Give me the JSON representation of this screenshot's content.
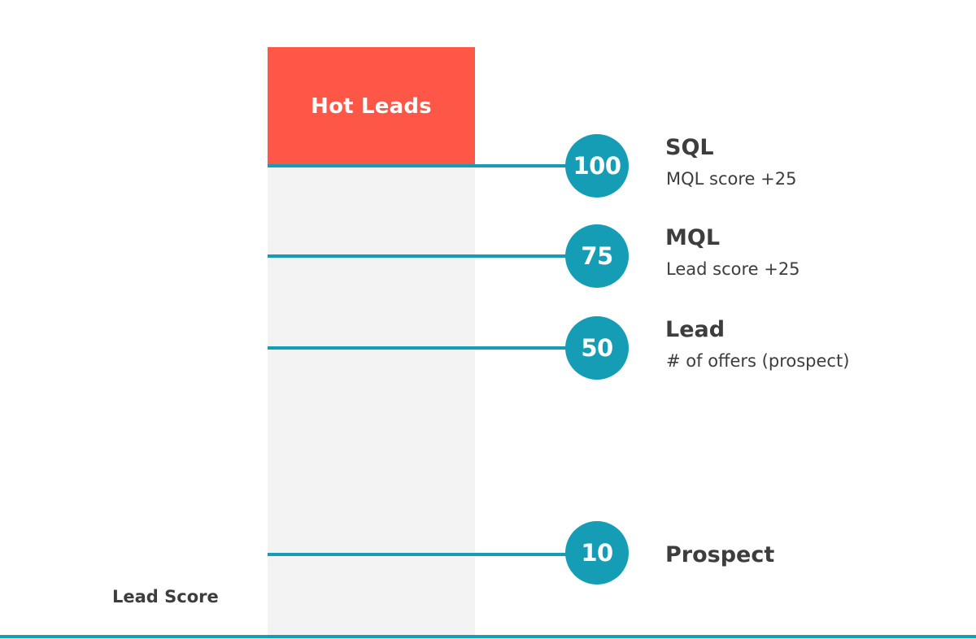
{
  "hot_leads": {
    "label": "Hot Leads"
  },
  "axis_label": "Lead Score",
  "tiers": [
    {
      "score": "100",
      "name": "SQL",
      "description": "MQL score +25"
    },
    {
      "score": "75",
      "name": "MQL",
      "description": "Lead score +25"
    },
    {
      "score": "50",
      "name": "Lead",
      "description": "# of offers (prospect)"
    },
    {
      "score": "10",
      "name": "Prospect",
      "description": ""
    }
  ],
  "colors": {
    "hot_box": "#ff5747",
    "accent": "#149db4",
    "column": "#f3f3f3",
    "text": "#3d3d3d"
  }
}
